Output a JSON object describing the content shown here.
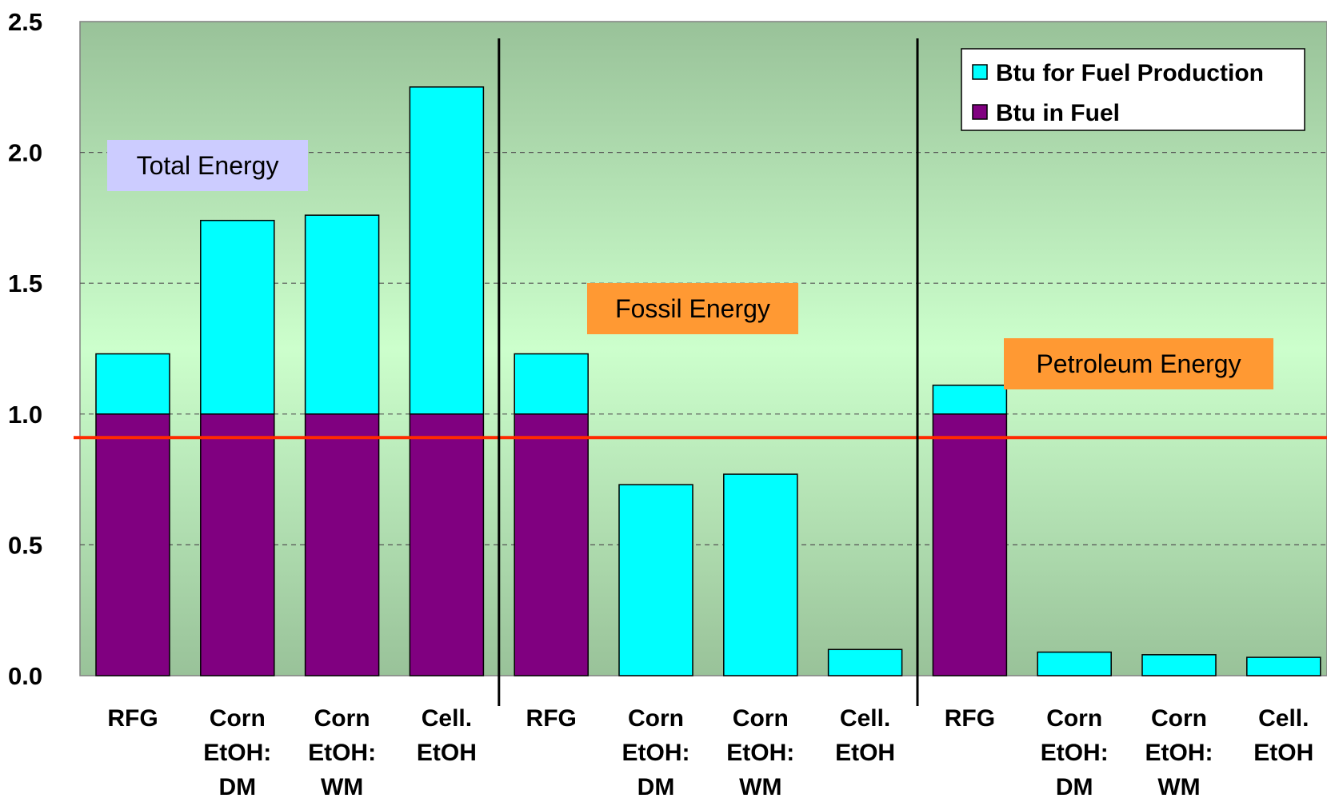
{
  "chart_data": {
    "type": "bar",
    "stacked": true,
    "title": "",
    "xlabel": "",
    "ylabel": "",
    "ylim": [
      0,
      2.5
    ],
    "yticks": [
      "0.0",
      "0.5",
      "1.0",
      "1.5",
      "2.0",
      "2.5"
    ],
    "grid": "horizontal dashed",
    "legend_position": "top-right",
    "categories": [
      [
        "RFG"
      ],
      [
        "Corn",
        "EtOH:",
        "DM"
      ],
      [
        "Corn",
        "EtOH:",
        "WM"
      ],
      [
        "Cell.",
        "EtOH"
      ],
      [
        "RFG"
      ],
      [
        "Corn",
        "EtOH:",
        "DM"
      ],
      [
        "Corn",
        "EtOH:",
        "WM"
      ],
      [
        "Cell.",
        "EtOH"
      ],
      [
        "RFG"
      ],
      [
        "Corn",
        "EtOH:",
        "DM"
      ],
      [
        "Corn",
        "EtOH:",
        "WM"
      ],
      [
        "Cell.",
        "EtOH"
      ]
    ],
    "groups": [
      {
        "label": "Total Energy",
        "label_color": "#ccccff"
      },
      {
        "label": "Fossil Energy",
        "label_color": "#ff9933"
      },
      {
        "label": "Petroleum Energy",
        "label_color": "#ff9933"
      }
    ],
    "series": [
      {
        "name": "Btu in Fuel",
        "color": "#800080",
        "values": [
          1.0,
          1.0,
          1.0,
          1.0,
          1.0,
          0,
          0,
          0,
          1.0,
          0,
          0,
          0
        ]
      },
      {
        "name": "Btu for Fuel Production",
        "color": "#00ffff",
        "values": [
          0.23,
          0.74,
          0.76,
          1.25,
          0.23,
          0.73,
          0.77,
          0.1,
          0.11,
          0.09,
          0.08,
          0.07
        ]
      }
    ],
    "reference_line": {
      "y": 0.91,
      "color": "#ff2a00"
    },
    "legend": [
      "Btu for Fuel Production",
      "Btu in Fuel"
    ]
  }
}
